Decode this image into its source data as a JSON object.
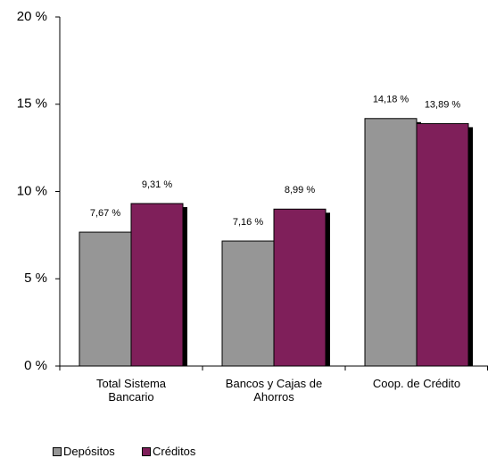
{
  "chart_data": {
    "type": "bar",
    "categories": [
      "Total Sistema Bancario",
      "Bancos y Cajas de Ahorros",
      "Coop. de Crédito"
    ],
    "series": [
      {
        "name": "Depósitos",
        "color": "#969696",
        "values": [
          7.67,
          7.16,
          14.18
        ],
        "value_labels": [
          "7,67 %",
          "7,16 %",
          "14,18 %"
        ]
      },
      {
        "name": "Créditos",
        "color": "#7f1f5a",
        "values": [
          9.31,
          8.99,
          13.89
        ],
        "value_labels": [
          "9,31 %",
          "8,99 %",
          "13,89 %"
        ]
      }
    ],
    "ylim": [
      0,
      20
    ],
    "yticks": [
      {
        "value": 0,
        "label": "0 %"
      },
      {
        "value": 5,
        "label": "5 %"
      },
      {
        "value": 10,
        "label": "10 %"
      },
      {
        "value": 15,
        "label": "15 %"
      },
      {
        "value": 20,
        "label": "20 %"
      }
    ],
    "grid": false
  }
}
